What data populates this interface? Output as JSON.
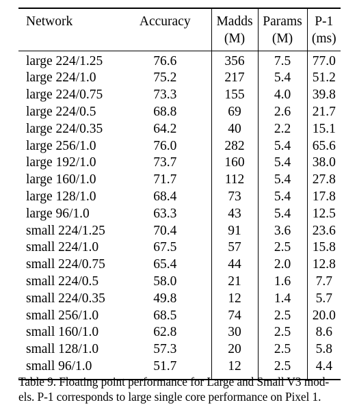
{
  "table": {
    "headers": {
      "network": "Network",
      "accuracy": "Accuracy",
      "madds": "Madds",
      "madds_unit": "(M)",
      "params": "Params",
      "params_unit": "(M)",
      "p1": "P-1",
      "p1_unit": "(ms)"
    },
    "rows": [
      {
        "network": "large 224/1.25",
        "accuracy": "76.6",
        "madds": "356",
        "params": "7.5",
        "p1": "77.0"
      },
      {
        "network": "large 224/1.0",
        "accuracy": "75.2",
        "madds": "217",
        "params": "5.4",
        "p1": "51.2"
      },
      {
        "network": "large 224/0.75",
        "accuracy": "73.3",
        "madds": "155",
        "params": "4.0",
        "p1": "39.8"
      },
      {
        "network": "large 224/0.5",
        "accuracy": "68.8",
        "madds": "69",
        "params": "2.6",
        "p1": "21.7"
      },
      {
        "network": "large 224/0.35",
        "accuracy": "64.2",
        "madds": "40",
        "params": "2.2",
        "p1": "15.1"
      },
      {
        "network": "large 256/1.0",
        "accuracy": "76.0",
        "madds": "282",
        "params": "5.4",
        "p1": "65.6"
      },
      {
        "network": "large 192/1.0",
        "accuracy": "73.7",
        "madds": "160",
        "params": "5.4",
        "p1": "38.0"
      },
      {
        "network": "large 160/1.0",
        "accuracy": "71.7",
        "madds": "112",
        "params": "5.4",
        "p1": "27.8"
      },
      {
        "network": "large 128/1.0",
        "accuracy": "68.4",
        "madds": "73",
        "params": "5.4",
        "p1": "17.8"
      },
      {
        "network": "large 96/1.0",
        "accuracy": "63.3",
        "madds": "43",
        "params": "5.4",
        "p1": "12.5"
      },
      {
        "network": "small 224/1.25",
        "accuracy": "70.4",
        "madds": "91",
        "params": "3.6",
        "p1": "23.6"
      },
      {
        "network": "small 224/1.0",
        "accuracy": "67.5",
        "madds": "57",
        "params": "2.5",
        "p1": "15.8"
      },
      {
        "network": "small 224/0.75",
        "accuracy": "65.4",
        "madds": "44",
        "params": "2.0",
        "p1": "12.8"
      },
      {
        "network": "small 224/0.5",
        "accuracy": "58.0",
        "madds": "21",
        "params": "1.6",
        "p1": "7.7"
      },
      {
        "network": "small 224/0.35",
        "accuracy": "49.8",
        "madds": "12",
        "params": "1.4",
        "p1": "5.7"
      },
      {
        "network": "small 256/1.0",
        "accuracy": "68.5",
        "madds": "74",
        "params": "2.5",
        "p1": "20.0"
      },
      {
        "network": "small 160/1.0",
        "accuracy": "62.8",
        "madds": "30",
        "params": "2.5",
        "p1": "8.6"
      },
      {
        "network": "small 128/1.0",
        "accuracy": "57.3",
        "madds": "20",
        "params": "2.5",
        "p1": "5.8"
      },
      {
        "network": "small 96/1.0",
        "accuracy": "51.7",
        "madds": "12",
        "params": "2.5",
        "p1": "4.4"
      }
    ]
  },
  "caption": {
    "line1": "Table 9. Floating point performance for Large and Small V3 mod-",
    "line2": "els. P-1 corresponds to large single core performance on Pixel 1."
  }
}
